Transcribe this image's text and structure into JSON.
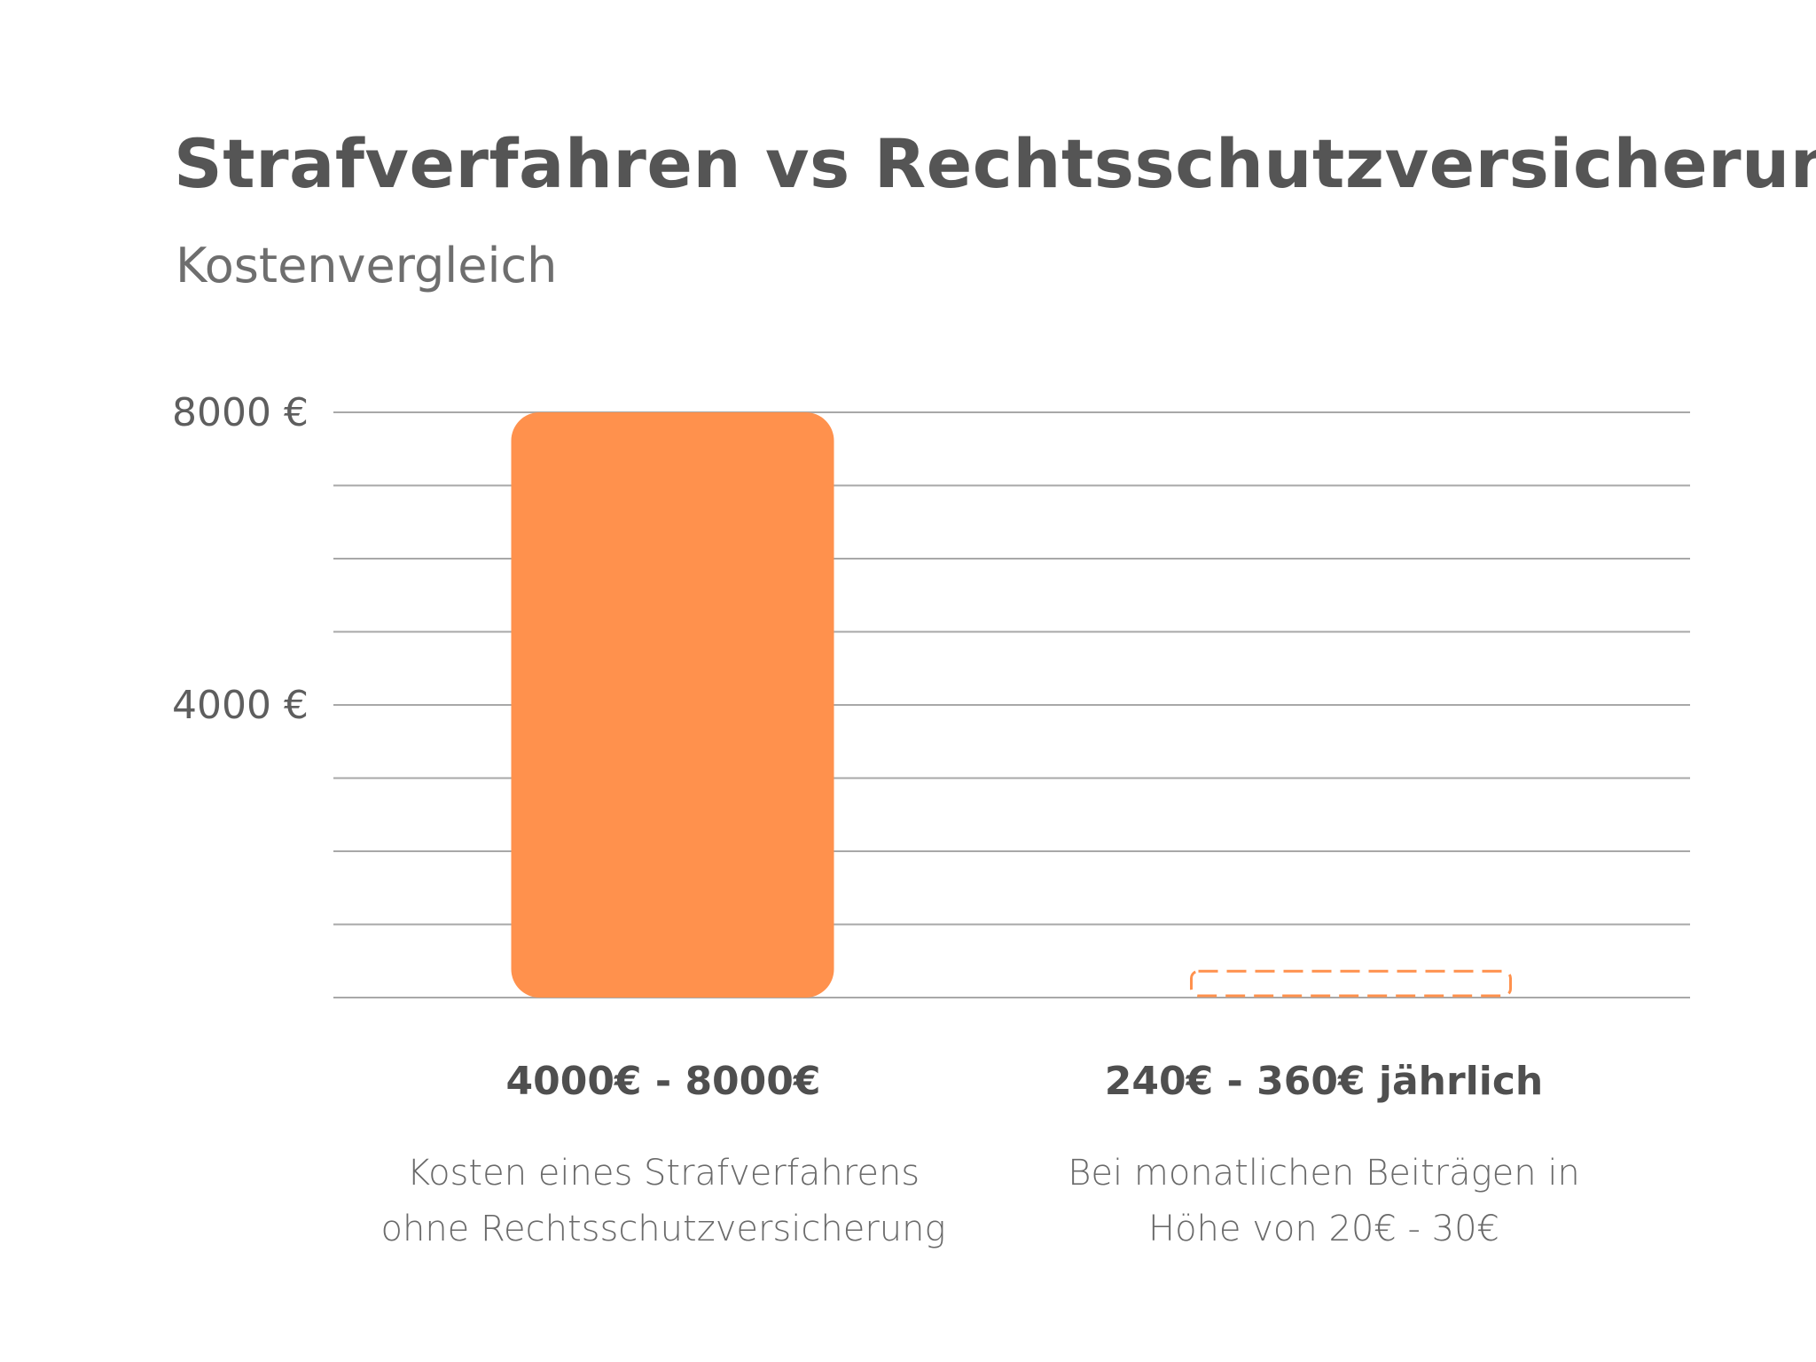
{
  "chart_data": {
    "type": "bar",
    "title": "Strafverfahren vs Rechtsschutzversicherung",
    "subtitle": "Kostenvergleich",
    "xlabel": "",
    "ylabel": "",
    "ylim": [
      0,
      8000
    ],
    "yticks": [
      {
        "value": 8000,
        "label": "8000 €"
      },
      {
        "value": 4000,
        "label": "4000 €"
      }
    ],
    "gridlines": [
      0,
      1000,
      2000,
      3000,
      4000,
      5000,
      6000,
      7000,
      8000
    ],
    "categories": [
      {
        "value_label": "4000€ - 8000€",
        "description": [
          "Kosten eines Strafverfahrens",
          "ohne Rechtsschutzversicherung"
        ],
        "range": [
          4000,
          8000
        ],
        "value": 8000,
        "style": "solid"
      },
      {
        "value_label": "240€ - 360€ jährlich",
        "description": [
          "Bei monatlichen Beiträgen in",
          "Höhe von 20€ - 30€"
        ],
        "range": [
          240,
          360
        ],
        "value": 360,
        "style": "dashed"
      }
    ],
    "colors": {
      "bar": "#FF914D",
      "grid": "#a8a8a8",
      "title": "#555555"
    }
  }
}
